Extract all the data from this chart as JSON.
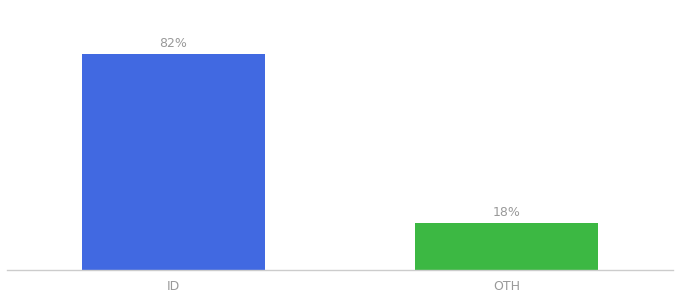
{
  "categories": [
    "ID",
    "OTH"
  ],
  "values": [
    82,
    18
  ],
  "bar_colors": [
    "#4169e1",
    "#3cb843"
  ],
  "labels": [
    "82%",
    "18%"
  ],
  "background_color": "#ffffff",
  "ylim": [
    0,
    100
  ],
  "bar_width": 0.55,
  "figsize": [
    6.8,
    3.0
  ],
  "dpi": 100,
  "label_fontsize": 9,
  "tick_fontsize": 9,
  "label_color": "#999999",
  "tick_color": "#999999",
  "xlim": [
    -0.5,
    1.5
  ]
}
